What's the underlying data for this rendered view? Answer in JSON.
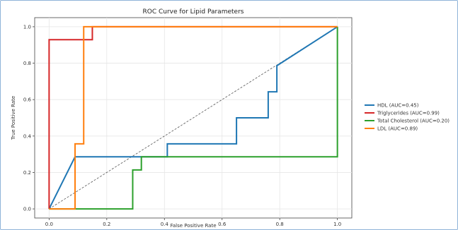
{
  "chart_data": {
    "type": "line",
    "title": "ROC Curve for Lipid Parameters",
    "xlabel": "False Positive Rate",
    "ylabel": "True Positive Rate",
    "xlim": [
      -0.05,
      1.05
    ],
    "ylim": [
      -0.05,
      1.05
    ],
    "xticks": [
      "0.0",
      "0.2",
      "0.4",
      "0.6",
      "0.8",
      "1.0"
    ],
    "yticks": [
      "0.0",
      "0.2",
      "0.4",
      "0.6",
      "0.8",
      "1.0"
    ],
    "grid": true,
    "legend_position": "right",
    "diagonal": {
      "x": [
        0,
        1
      ],
      "y": [
        0,
        1
      ],
      "style": "dashed",
      "color": "#555555"
    },
    "series": [
      {
        "name": "HDL (AUC=0.45)",
        "color": "#1f77b4",
        "x": [
          0,
          0.09,
          0.41,
          0.41,
          0.65,
          0.65,
          0.76,
          0.76,
          0.79,
          0.79,
          1.0
        ],
        "y": [
          0,
          0.286,
          0.286,
          0.357,
          0.357,
          0.5,
          0.5,
          0.643,
          0.643,
          0.786,
          1.0
        ]
      },
      {
        "name": "Triglycerides (AUC=0.99)",
        "color": "#d62728",
        "x": [
          0,
          0,
          0.15,
          0.15,
          1.0
        ],
        "y": [
          0,
          0.929,
          0.929,
          1.0,
          1.0
        ]
      },
      {
        "name": "Total Cholesterol (AUC=0.20)",
        "color": "#2ca02c",
        "x": [
          0,
          0.29,
          0.29,
          0.32,
          0.32,
          1.0,
          1.0
        ],
        "y": [
          0,
          0,
          0.214,
          0.214,
          0.286,
          0.286,
          1.0
        ]
      },
      {
        "name": "LDL (AUC=0.89)",
        "color": "#ff7f0e",
        "x": [
          0,
          0.09,
          0.09,
          0.12,
          0.12,
          1.0
        ],
        "y": [
          0,
          0,
          0.357,
          0.357,
          1.0,
          1.0
        ]
      }
    ]
  }
}
